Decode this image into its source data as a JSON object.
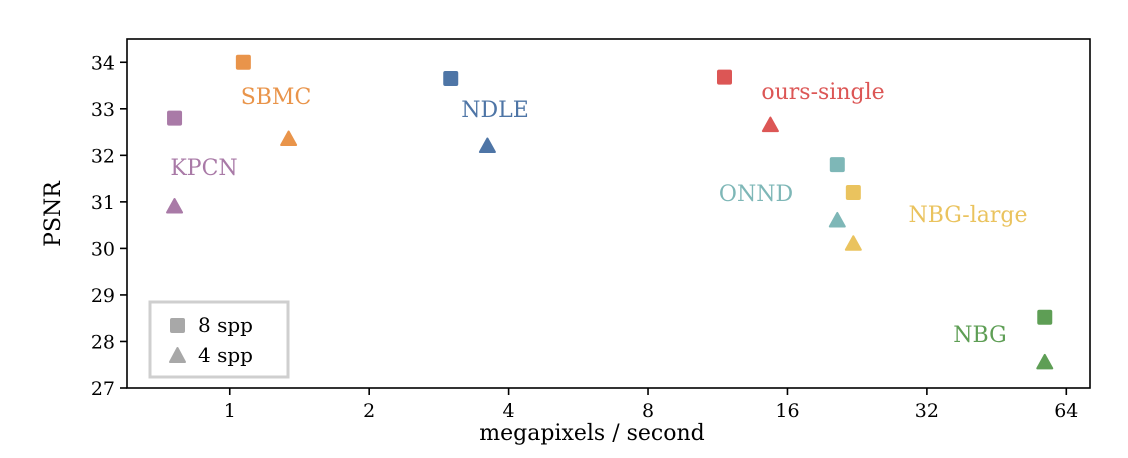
{
  "chart_data": {
    "type": "scatter",
    "title": "",
    "xlabel": "megapixels / second",
    "ylabel": "PSNR",
    "x_scale": "log2",
    "xlim": [
      0.6,
      72
    ],
    "ylim": [
      27,
      34.5
    ],
    "x_ticks": [
      1,
      2,
      4,
      8,
      16,
      32,
      64
    ],
    "y_ticks": [
      27,
      28,
      29,
      30,
      31,
      32,
      33,
      34
    ],
    "grid": false,
    "legend": {
      "placement": "bottom-left",
      "entries": [
        {
          "marker": "square",
          "label": "8 spp"
        },
        {
          "marker": "triangle",
          "label": "4 spp"
        }
      ]
    },
    "series": [
      {
        "name": "KPCN",
        "color": "#a97aa7",
        "points": [
          {
            "x": 0.76,
            "y": 32.8,
            "spp": 8
          },
          {
            "x": 0.76,
            "y": 30.9,
            "spp": 4
          }
        ]
      },
      {
        "name": "SBMC",
        "color": "#e9944a",
        "points": [
          {
            "x": 1.07,
            "y": 34.0,
            "spp": 8
          },
          {
            "x": 1.34,
            "y": 32.35,
            "spp": 4
          }
        ]
      },
      {
        "name": "NDLE",
        "color": "#4e75a6",
        "points": [
          {
            "x": 3.0,
            "y": 33.65,
            "spp": 8
          },
          {
            "x": 3.6,
            "y": 32.2,
            "spp": 4
          }
        ]
      },
      {
        "name": "ours-single",
        "color": "#dc5655",
        "points": [
          {
            "x": 11.7,
            "y": 33.68,
            "spp": 8
          },
          {
            "x": 14.7,
            "y": 32.65,
            "spp": 4
          }
        ]
      },
      {
        "name": "ONND",
        "color": "#7eb7b7",
        "points": [
          {
            "x": 20.5,
            "y": 31.8,
            "spp": 8
          },
          {
            "x": 20.5,
            "y": 30.6,
            "spp": 4
          }
        ]
      },
      {
        "name": "NBG-large",
        "color": "#eac35e",
        "points": [
          {
            "x": 22.2,
            "y": 31.2,
            "spp": 8
          },
          {
            "x": 22.2,
            "y": 30.1,
            "spp": 4
          }
        ]
      },
      {
        "name": "NBG",
        "color": "#5e9e55",
        "points": [
          {
            "x": 57.5,
            "y": 28.52,
            "spp": 8
          },
          {
            "x": 57.5,
            "y": 27.55,
            "spp": 4
          }
        ]
      }
    ]
  }
}
